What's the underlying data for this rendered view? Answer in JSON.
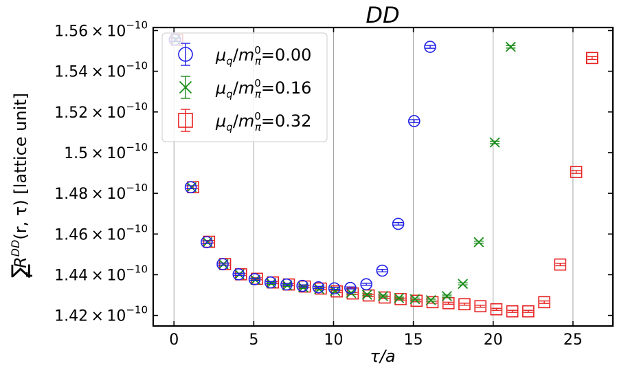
{
  "chart_data": {
    "type": "scatter",
    "title": "DD",
    "xlabel": "τ/a",
    "ylabel": "∑R^{DD}(r, τ) [lattice unit]",
    "ylabel_sum": "∑",
    "ylabel_sum_sub": "r",
    "ylabel_R": "R",
    "ylabel_sup": "DD",
    "ylabel_args": "(r, τ) [lattice unit]",
    "xlim": [
      -1.3,
      27.5
    ],
    "ylim": [
      1.4148e-10,
      1.5615e-10
    ],
    "grid": "vertical",
    "legend_position": "top-left",
    "x_ticks": [
      0,
      5,
      10,
      15,
      20,
      25
    ],
    "x_tick_labels": [
      "0",
      "5",
      "10",
      "15",
      "20",
      "25"
    ],
    "y_ticks": [
      1.42e-10,
      1.44e-10,
      1.46e-10,
      1.48e-10,
      1.5e-10,
      1.52e-10,
      1.54e-10,
      1.56e-10
    ],
    "y_tick_labels": [
      {
        "mant": "1.42",
        "exp": "−10"
      },
      {
        "mant": "1.44",
        "exp": "−10"
      },
      {
        "mant": "1.46",
        "exp": "−10"
      },
      {
        "mant": "1.48",
        "exp": "−10"
      },
      {
        "mant": "1.5",
        "exp": "−10"
      },
      {
        "mant": "1.52",
        "exp": "−10"
      },
      {
        "mant": "1.54",
        "exp": "−10"
      },
      {
        "mant": "1.56",
        "exp": "−10"
      }
    ],
    "series": [
      {
        "name": "μq/mπ0=0.00",
        "label_mu": "μ",
        "label_q": "q",
        "label_m": "m",
        "label_pi": "π",
        "label_zero": "0",
        "label_value": "=0.00",
        "color": "#1f1fe6",
        "marker": "circle",
        "x": [
          0,
          1,
          2,
          3,
          4,
          5,
          6,
          7,
          8,
          9,
          10,
          11,
          12,
          13,
          14,
          15,
          16
        ],
        "y": [
          1.5555e-10,
          1.483e-10,
          1.456e-10,
          1.4452e-10,
          1.4402e-10,
          1.4378e-10,
          1.4362e-10,
          1.4352e-10,
          1.4345e-10,
          1.4338e-10,
          1.4333e-10,
          1.4335e-10,
          1.4353e-10,
          1.442e-10,
          1.465e-10,
          1.5155e-10,
          1.552e-10
        ],
        "err": [
          8e-14,
          7e-14,
          6e-14,
          5e-14,
          5e-14,
          5e-14,
          5e-14,
          5e-14,
          5e-14,
          5e-14,
          5e-14,
          5e-14,
          5e-14,
          6e-14,
          6e-14,
          7e-14,
          7e-14
        ]
      },
      {
        "name": "μq/mπ0=0.16",
        "label_mu": "μ",
        "label_q": "q",
        "label_m": "m",
        "label_pi": "π",
        "label_zero": "0",
        "label_value": "=0.16",
        "color": "#1a8c1a",
        "marker": "x",
        "x": [
          0,
          1,
          2,
          3,
          4,
          5,
          6,
          7,
          8,
          9,
          10,
          11,
          12,
          13,
          14,
          15,
          16,
          17,
          18,
          19,
          20,
          21
        ],
        "y": [
          1.5555e-10,
          1.483e-10,
          1.456e-10,
          1.4452e-10,
          1.4402e-10,
          1.4375e-10,
          1.4358e-10,
          1.4348e-10,
          1.4338e-10,
          1.433e-10,
          1.432e-10,
          1.431e-10,
          1.4302e-10,
          1.4295e-10,
          1.4285e-10,
          1.428e-10,
          1.4275e-10,
          1.4295e-10,
          1.4355e-10,
          1.456e-10,
          1.505e-10,
          1.552e-10
        ],
        "err": [
          8e-14,
          7e-14,
          6e-14,
          5e-14,
          5e-14,
          5e-14,
          5e-14,
          5e-14,
          5e-14,
          5e-14,
          5e-14,
          5e-14,
          5e-14,
          5e-14,
          5e-14,
          5e-14,
          5e-14,
          5e-14,
          5e-14,
          5e-14,
          6e-14,
          6e-14
        ]
      },
      {
        "name": "μq/mπ0=0.32",
        "label_mu": "μ",
        "label_q": "q",
        "label_m": "m",
        "label_pi": "π",
        "label_zero": "0",
        "label_value": "=0.32",
        "color": "#e62020",
        "marker": "square",
        "x": [
          0,
          1,
          2,
          3,
          4,
          5,
          6,
          7,
          8,
          9,
          10,
          11,
          12,
          13,
          14,
          15,
          16,
          17,
          18,
          19,
          20,
          21,
          22,
          23,
          24,
          25,
          26
        ],
        "y": [
          1.5555e-10,
          1.483e-10,
          1.4562e-10,
          1.4452e-10,
          1.4402e-10,
          1.438e-10,
          1.4362e-10,
          1.4352e-10,
          1.4342e-10,
          1.4332e-10,
          1.4318e-10,
          1.4308e-10,
          1.4298e-10,
          1.4288e-10,
          1.428e-10,
          1.4272e-10,
          1.4265e-10,
          1.426e-10,
          1.4255e-10,
          1.4245e-10,
          1.423e-10,
          1.422e-10,
          1.422e-10,
          1.4265e-10,
          1.445e-10,
          1.4905e-10,
          1.5465e-10
        ],
        "err": [
          8e-14,
          7e-14,
          6e-14,
          5e-14,
          5e-14,
          5e-14,
          5e-14,
          5e-14,
          5e-14,
          5e-14,
          5e-14,
          5e-14,
          5e-14,
          5e-14,
          5e-14,
          5e-14,
          5e-14,
          5e-14,
          5e-14,
          5e-14,
          5e-14,
          5e-14,
          5e-14,
          6e-14,
          6e-14,
          7e-14,
          7e-14
        ]
      }
    ]
  }
}
